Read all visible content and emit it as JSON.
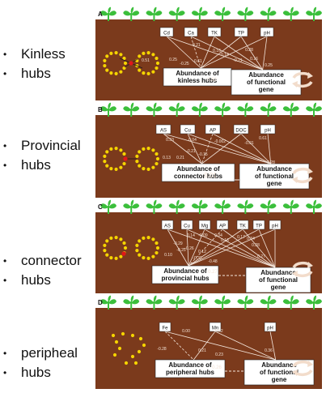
{
  "bullets": [
    {
      "lines": [
        "Kinless",
        "hubs"
      ]
    },
    {
      "lines": [
        "Provincial",
        "hubs"
      ]
    },
    {
      "lines": [
        "connector",
        "hubs"
      ]
    },
    {
      "lines": [
        "peripheal",
        "hubs"
      ]
    }
  ],
  "colors": {
    "soil": "#7b3a1c",
    "plant": "#3bbf3b",
    "dots": "#f5d400",
    "hub": "#e01818",
    "line": "#f4e6dc"
  },
  "panels": [
    {
      "letter": "A",
      "vars": [
        "Cd",
        "Ca",
        "TK",
        "TP",
        "pH"
      ],
      "left_box": [
        "Abundance of",
        "kinless hubs"
      ],
      "right_box": [
        "Abundance",
        "of functional",
        "gene"
      ],
      "middle_value": "0.32",
      "coefs": [
        "0.51",
        "0.25",
        "-0.21",
        "-0.25",
        "-0.61",
        "0.16",
        "0.14",
        "-0.21",
        "0.28",
        "0.16",
        "0.25"
      ]
    },
    {
      "letter": "B",
      "vars": [
        "AS",
        "Cu",
        "AP",
        "DOC",
        "pH"
      ],
      "left_box": [
        "Abundance of",
        "connector hubs"
      ],
      "right_box": [
        "Abundance",
        "of functional",
        "gene"
      ],
      "middle_value": "0.01",
      "coefs": [
        "0.33",
        "0.04",
        "-0.002",
        "-0.01",
        "0.61",
        "0.13",
        "0.21",
        "-0.21",
        "-0.15",
        "0.28"
      ]
    },
    {
      "letter": "C",
      "vars": [
        "AS",
        "Cu",
        "Mg",
        "AP",
        "TK",
        "TP",
        "pH"
      ],
      "left_box": [
        "Abundance of",
        "provincial hubs"
      ],
      "right_box": [
        "Abundance",
        "of functional",
        "gene"
      ],
      "middle_value": "-0.27",
      "coefs": [
        "0.14",
        "-0.09",
        "0.04",
        "0.16",
        "0.17",
        "0.34",
        "-0.29",
        "-0.25",
        "0.10",
        "0.12",
        "-0.48",
        "0.28",
        "0.27",
        "-0.26",
        "-0.33"
      ]
    },
    {
      "letter": "D",
      "vars": [
        "Fe",
        "Mn",
        "pH"
      ],
      "left_box": [
        "Abundance of",
        "peripheral hubs"
      ],
      "right_box": [
        "Abundance",
        "of functional",
        "gene"
      ],
      "middle_value": "0.26",
      "coefs": [
        "0.00",
        "-0.02",
        "-0.28",
        "0.21",
        "0.23",
        "0.36"
      ]
    }
  ]
}
